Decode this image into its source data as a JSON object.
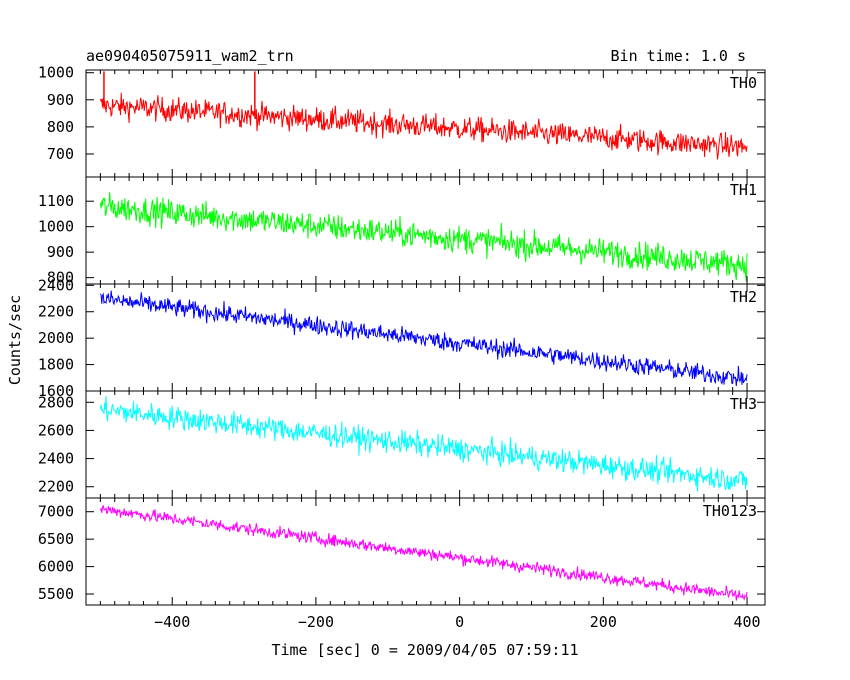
{
  "chart_data": {
    "type": "line",
    "title_left": "ae090405075911_wam2_trn",
    "title_right": "Bin time: 1.0 s",
    "xlabel": "Time [sec] 0 = 2009/04/05 07:59:11",
    "ylabel": "Counts/sec",
    "xlim": [
      -520,
      425
    ],
    "x_ticks": [
      -400,
      -200,
      0,
      200,
      400
    ],
    "panels": [
      {
        "name": "TH0",
        "color": "#ff0000",
        "ylim": [
          615,
          1010
        ],
        "y_ticks": [
          700,
          800,
          900,
          1000
        ],
        "series": {
          "x": [
            -500,
            400
          ],
          "y": [
            880,
            725
          ],
          "noise": 32
        },
        "spikes": [
          {
            "x": -495,
            "y": 1005
          },
          {
            "x": -285,
            "y": 1005
          }
        ]
      },
      {
        "name": "TH1",
        "color": "#00ff00",
        "ylim": [
          775,
          1195
        ],
        "y_ticks": [
          800,
          900,
          1000,
          1100
        ],
        "series": {
          "x": [
            -500,
            400
          ],
          "y": [
            1080,
            850
          ],
          "noise": 38
        }
      },
      {
        "name": "TH2",
        "color": "#0000ff",
        "ylim": [
          1600,
          2410
        ],
        "y_ticks": [
          1600,
          1800,
          2000,
          2200,
          2400
        ],
        "series": {
          "x": [
            -500,
            400
          ],
          "y": [
            2300,
            1690
          ],
          "noise": 50
        }
      },
      {
        "name": "TH3",
        "color": "#00ffff",
        "ylim": [
          2120,
          2880
        ],
        "y_ticks": [
          2200,
          2400,
          2600,
          2800
        ],
        "series": {
          "x": [
            -500,
            400
          ],
          "y": [
            2750,
            2240
          ],
          "noise": 60
        }
      },
      {
        "name": "TH0123",
        "color": "#ff00ff",
        "ylim": [
          5300,
          7250
        ],
        "y_ticks": [
          5500,
          6000,
          6500,
          7000
        ],
        "series": {
          "x": [
            -500,
            400
          ],
          "y": [
            7050,
            5450
          ],
          "noise": 80
        }
      }
    ]
  }
}
